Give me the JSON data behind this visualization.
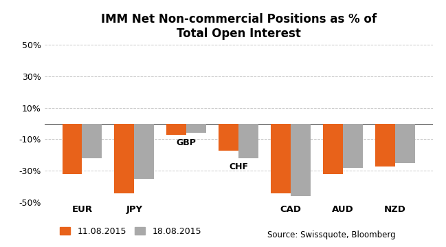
{
  "title": "IMM Net Non-commercial Positions as % of\nTotal Open Interest",
  "currencies": [
    "EUR",
    "JPY",
    "GBP",
    "CHF",
    "CAD",
    "AUD",
    "NZD"
  ],
  "values_11": [
    -32,
    -44,
    -7,
    -17,
    -44,
    -32,
    -27
  ],
  "values_18": [
    -22,
    -35,
    -6,
    -22,
    -46,
    -28,
    -25
  ],
  "color_11": "#E8621A",
  "color_18": "#A9A9A9",
  "ylim": [
    -50,
    50
  ],
  "yticks": [
    -50,
    -30,
    -10,
    10,
    30,
    50
  ],
  "ytick_labels": [
    "-50%",
    "-30%",
    "-10%",
    "10%",
    "30%",
    "50%"
  ],
  "legend_11": "11.08.2015",
  "legend_18": "18.08.2015",
  "source_text": "Source: Swissquote, Bloomberg",
  "background_color": "#FFFFFF",
  "grid_color": "#C8C8C8",
  "bar_width": 0.38,
  "figsize": [
    6.49,
    3.59
  ],
  "dpi": 100
}
